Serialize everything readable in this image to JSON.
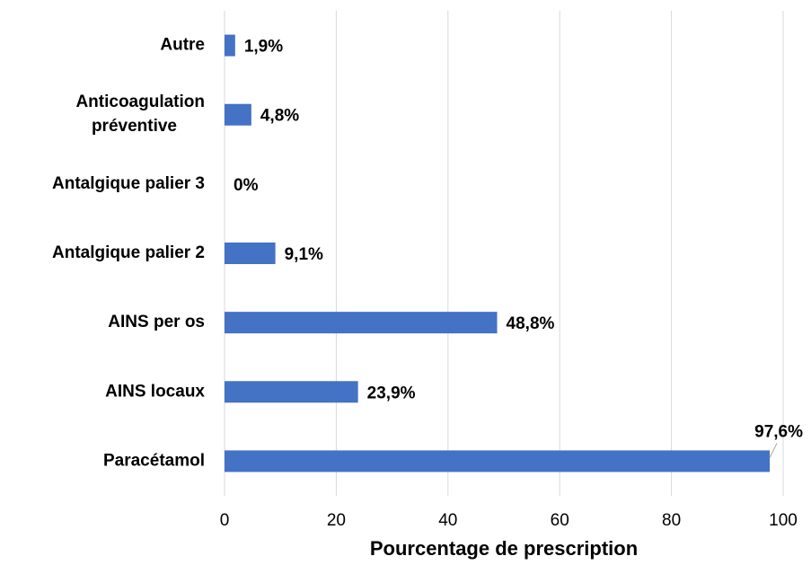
{
  "chart_data": {
    "type": "barh",
    "categories": [
      "Autre",
      "Anticoagulation\npréventive",
      "Antalgique palier 3",
      "Antalgique palier 2",
      "AINS per os",
      "AINS locaux",
      "Paracétamol"
    ],
    "values": [
      1.9,
      4.8,
      0,
      9.1,
      48.8,
      23.9,
      97.6
    ],
    "value_labels": [
      "1,9%",
      "4,8%",
      "0%",
      "9,1%",
      "48,8%",
      "23,9%",
      "97,6%"
    ],
    "color": "#4472c4",
    "xlabel": "Pourcentage de prescription",
    "xlim": [
      0,
      100
    ],
    "xticks": [
      0,
      20,
      40,
      60,
      80,
      100
    ],
    "grid": true
  }
}
